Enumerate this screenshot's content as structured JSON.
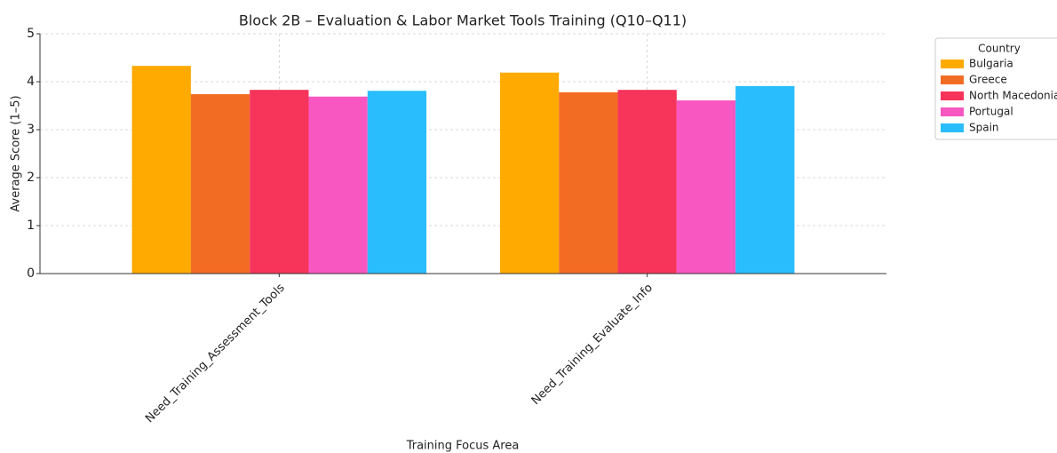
{
  "chart_data": {
    "type": "bar",
    "title": "Block 2B – Evaluation & Labor Market Tools Training (Q10–Q11)",
    "x_label": "Training Focus Area",
    "y_label": "Average Score (1–5)",
    "categories": [
      "Need_Training_Assessment_Tools",
      "Need_Training_Evaluate_Info"
    ],
    "series": [
      {
        "name": "Bulgaria",
        "color": "#ffaa00",
        "values": [
          4.33,
          4.19
        ]
      },
      {
        "name": "Greece",
        "color": "#f36c24",
        "values": [
          3.74,
          3.78
        ]
      },
      {
        "name": "North Macedonia",
        "color": "#f7345a",
        "values": [
          3.83,
          3.83
        ]
      },
      {
        "name": "Portugal",
        "color": "#f857c1",
        "values": [
          3.69,
          3.61
        ]
      },
      {
        "name": "Spain",
        "color": "#29bdfd",
        "values": [
          3.81,
          3.91
        ]
      }
    ],
    "legend_title": "Country",
    "legend": "outside-upper-right",
    "ylim": [
      0,
      5
    ],
    "yticks": [
      0,
      1,
      2,
      3,
      4,
      5
    ],
    "grid": true
  }
}
